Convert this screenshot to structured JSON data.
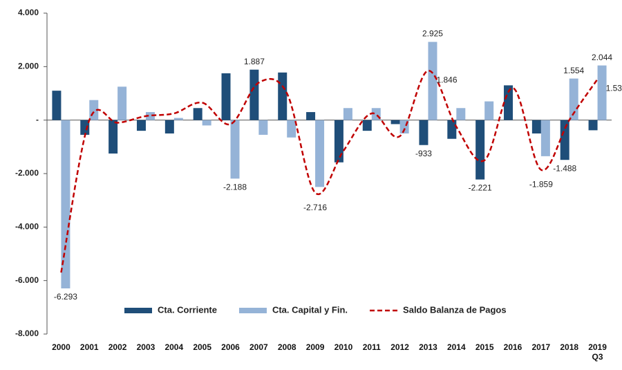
{
  "chart_data": {
    "type": "bar",
    "categories": [
      "2000",
      "2001",
      "2002",
      "2003",
      "2004",
      "2005",
      "2006",
      "2007",
      "2008",
      "2009",
      "2010",
      "2011",
      "2012",
      "2013",
      "2014",
      "2015",
      "2016",
      "2017",
      "2018",
      "2019 Q3"
    ],
    "series": [
      {
        "name": "Cta. Corriente",
        "color": "#1f4e79",
        "type": "bar",
        "values": [
          1100,
          -550,
          -1250,
          -400,
          -500,
          450,
          1750,
          1887,
          1780,
          300,
          -1580,
          -400,
          -150,
          -933,
          -700,
          -2221,
          1300,
          -500,
          -1488,
          -380
        ],
        "value_labels": [
          null,
          null,
          null,
          null,
          null,
          null,
          null,
          "1.887",
          null,
          null,
          null,
          null,
          null,
          "-933",
          null,
          "-2.221",
          null,
          null,
          "-1.488",
          null
        ]
      },
      {
        "name": "Cta. Capital y Fin.",
        "color": "#95b3d7",
        "type": "bar",
        "values": [
          -6293,
          750,
          1250,
          300,
          80,
          -200,
          -2188,
          -550,
          -650,
          -2500,
          450,
          450,
          -500,
          2925,
          450,
          700,
          0,
          -1350,
          1554,
          2044
        ],
        "value_labels": [
          "-6.293",
          null,
          null,
          null,
          null,
          null,
          "-2.188",
          null,
          null,
          null,
          null,
          null,
          null,
          "2.925",
          null,
          null,
          null,
          null,
          "1.554",
          "2.044"
        ]
      },
      {
        "name": "Saldo Balanza de Pagos",
        "color": "#c00000",
        "type": "line",
        "values": [
          -5700,
          0,
          -100,
          150,
          250,
          650,
          -150,
          1400,
          1000,
          -2716,
          -1150,
          250,
          -600,
          1846,
          -250,
          -1500,
          1200,
          -1859,
          0,
          1530
        ],
        "value_labels": [
          null,
          null,
          null,
          null,
          null,
          null,
          null,
          null,
          null,
          "-2.716",
          null,
          null,
          null,
          "1.846",
          null,
          null,
          null,
          "-1.859",
          null,
          "1.530"
        ]
      }
    ],
    "ylim": [
      -8000,
      4000
    ],
    "yticks": [
      {
        "value": -8000,
        "label": "-8.000"
      },
      {
        "value": -6000,
        "label": "-6.000"
      },
      {
        "value": -4000,
        "label": "-4.000"
      },
      {
        "value": -2000,
        "label": "-2.000"
      },
      {
        "value": 0,
        "label": "-"
      },
      {
        "value": 2000,
        "label": "2.000"
      },
      {
        "value": 4000,
        "label": "4.000"
      }
    ],
    "grid": false,
    "legend": "bottom"
  }
}
